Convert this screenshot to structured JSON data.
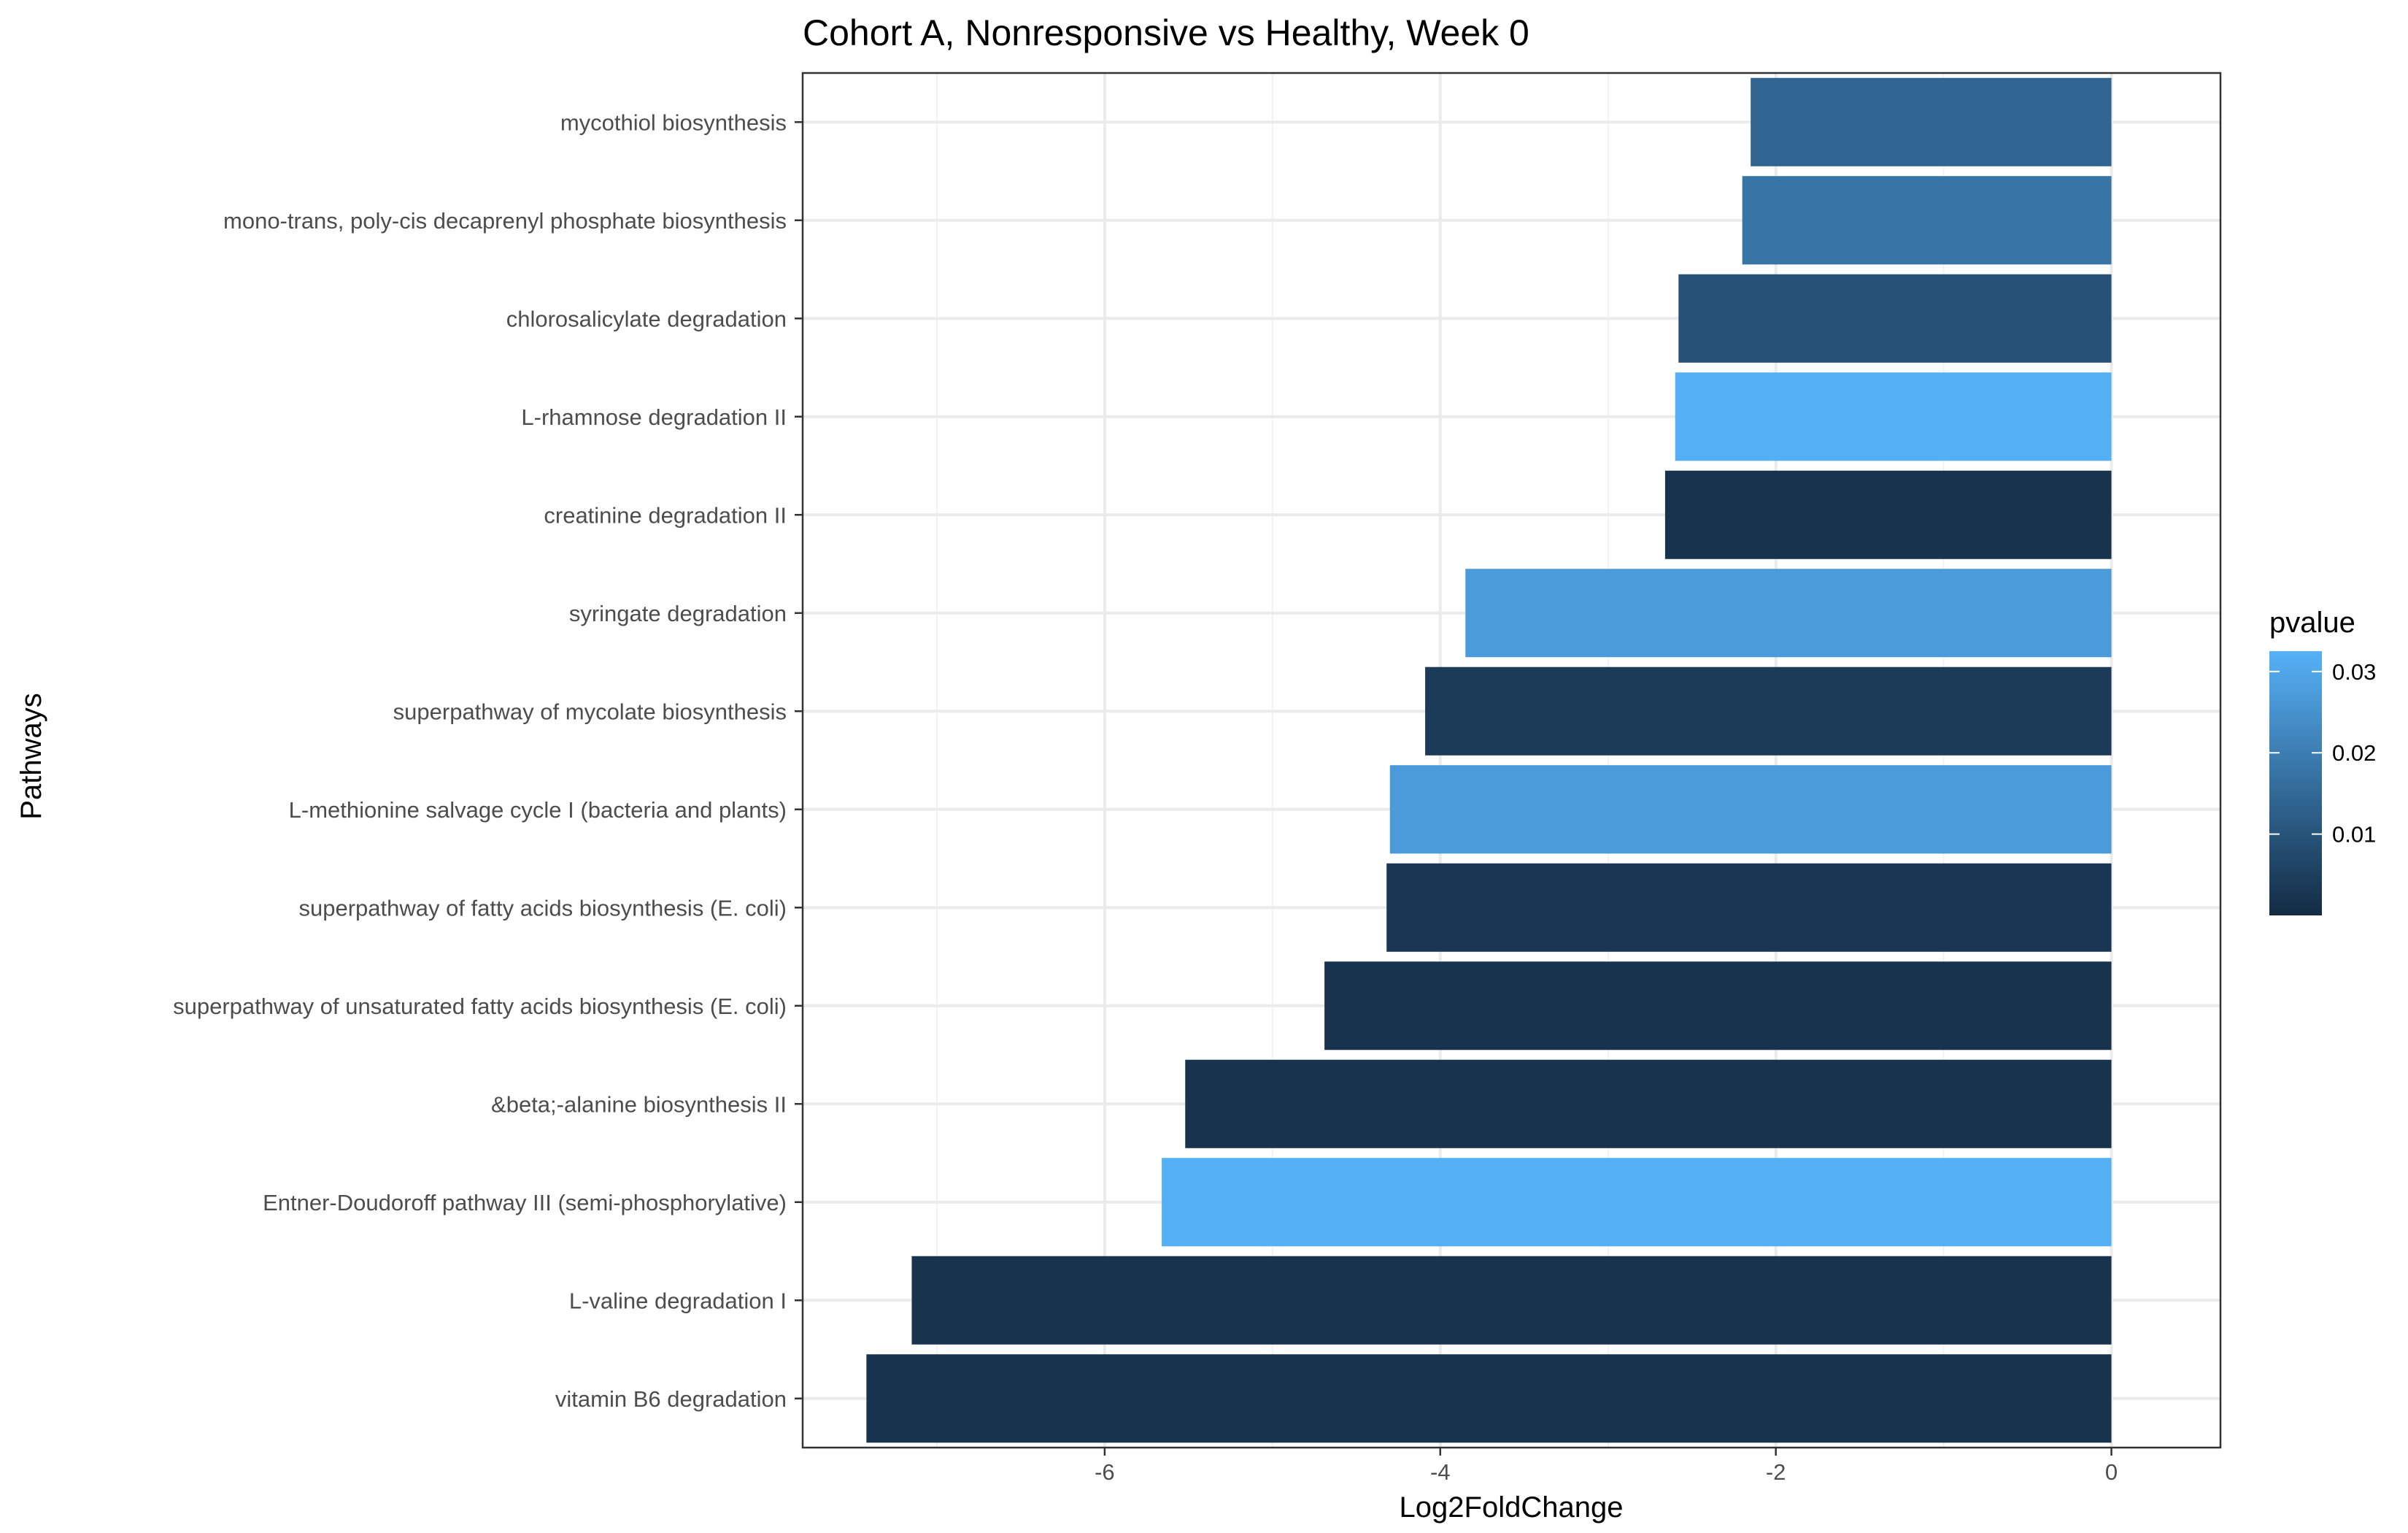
{
  "chart_data": {
    "type": "bar",
    "orientation": "horizontal",
    "title": "Cohort A, Nonresponsive vs Healthy, Week 0",
    "xlabel": "Log2FoldChange",
    "ylabel": "Pathways",
    "xlim": [
      -7.8,
      0.65
    ],
    "xticks": [
      -6,
      -4,
      -2,
      0
    ],
    "grid": true,
    "categories": [
      "mycothiol biosynthesis",
      "mono-trans, poly-cis decaprenyl phosphate biosynthesis",
      "chlorosalicylate degradation",
      "L-rhamnose degradation II",
      "creatinine degradation II",
      "syringate degradation",
      "superpathway of mycolate biosynthesis",
      "L-methionine salvage cycle I (bacteria and plants)",
      "superpathway of fatty acids biosynthesis (E. coli)",
      "superpathway of unsaturated fatty acids biosynthesis (E. coli)",
      "&beta;-alanine biosynthesis II",
      "Entner-Doudoroff pathway III (semi-phosphorylative)",
      "L-valine degradation I",
      "vitamin B6 degradation"
    ],
    "values": [
      -2.15,
      -2.2,
      -2.58,
      -2.6,
      -2.66,
      -3.85,
      -4.09,
      -4.3,
      -4.32,
      -4.69,
      -5.52,
      -5.66,
      -7.15,
      -7.42
    ],
    "pvalues": [
      0.014,
      0.018,
      0.009,
      0.032,
      0.002,
      0.027,
      0.004,
      0.027,
      0.003,
      0.002,
      0.002,
      0.032,
      0.002,
      0.002
    ],
    "legend": {
      "title": "pvalue",
      "placement": "right",
      "ticks": [
        0.01,
        0.02,
        0.03
      ],
      "tick_labels": [
        "0.01",
        "0.02",
        "0.03"
      ],
      "range": [
        0.0,
        0.0325
      ],
      "color_low": "#132B43",
      "color_high": "#56B1F7"
    }
  }
}
